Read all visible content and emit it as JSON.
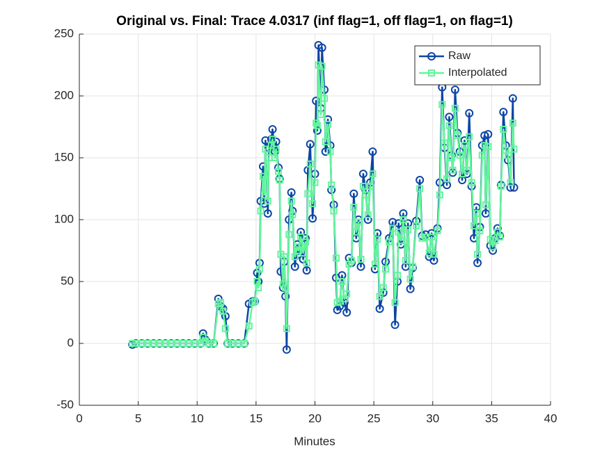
{
  "chart_data": {
    "type": "line",
    "title": "Original vs. Final: Trace 4.0317 (inf flag=1, off flag=1, on flag=1)",
    "x_label": "Minutes",
    "x": [
      4.5,
      4.8,
      5.3,
      5.8,
      6.3,
      6.8,
      7.3,
      7.8,
      8.3,
      8.8,
      9.3,
      9.8,
      10.3,
      10.5,
      10.7,
      11.0,
      11.4,
      11.8,
      12.0,
      12.2,
      12.4,
      12.6,
      13.0,
      13.5,
      14.0,
      14.4,
      14.7,
      14.9,
      15.1,
      15.2,
      15.3,
      15.4,
      15.6,
      15.7,
      15.8,
      16.0,
      16.1,
      16.3,
      16.4,
      16.6,
      16.7,
      16.9,
      17.0,
      17.1,
      17.3,
      17.4,
      17.5,
      17.6,
      17.8,
      18.0,
      18.1,
      18.3,
      18.5,
      18.6,
      18.8,
      19.0,
      19.2,
      19.3,
      19.4,
      19.6,
      19.8,
      20.0,
      20.1,
      20.2,
      20.3,
      20.5,
      20.6,
      20.8,
      20.9,
      21.1,
      21.3,
      21.4,
      21.6,
      21.8,
      21.9,
      22.1,
      22.3,
      22.5,
      22.7,
      22.9,
      23.1,
      23.3,
      23.5,
      23.7,
      23.9,
      24.1,
      24.3,
      24.5,
      24.7,
      24.9,
      25.1,
      25.3,
      25.5,
      25.8,
      26.0,
      26.3,
      26.6,
      26.8,
      27.0,
      27.1,
      27.3,
      27.5,
      27.7,
      27.9,
      28.1,
      28.3,
      28.6,
      28.9,
      29.1,
      29.4,
      29.7,
      29.9,
      30.1,
      30.4,
      30.6,
      30.8,
      31.0,
      31.2,
      31.4,
      31.6,
      31.7,
      31.9,
      32.1,
      32.3,
      32.5,
      32.7,
      32.9,
      33.1,
      33.3,
      33.5,
      33.7,
      33.8,
      34.0,
      34.2,
      34.4,
      34.5,
      34.7,
      34.9,
      35.1,
      35.3,
      35.5,
      35.7,
      35.8,
      36.0,
      36.2,
      36.4,
      36.6,
      36.8,
      36.9
    ],
    "series": [
      {
        "name": "Raw",
        "color": "#0b45a5",
        "marker": "circle",
        "values": [
          -1,
          0,
          0,
          0,
          0,
          0,
          0,
          0,
          0,
          0,
          0,
          0,
          0,
          8,
          3,
          0,
          0,
          36,
          30,
          28,
          22,
          0,
          0,
          0,
          0,
          32,
          34,
          34,
          57,
          50,
          65,
          115,
          143,
          113,
          164,
          105,
          158,
          165,
          173,
          155,
          163,
          142,
          133,
          58,
          45,
          66,
          38,
          -5,
          100,
          122,
          107,
          62,
          80,
          72,
          90,
          68,
          85,
          59,
          140,
          161,
          101,
          137,
          196,
          172,
          241,
          190,
          239,
          205,
          155,
          181,
          160,
          124,
          112,
          53,
          27,
          30,
          55,
          33,
          25,
          69,
          65,
          121,
          85,
          100,
          62,
          137,
          124,
          100,
          130,
          155,
          60,
          89,
          28,
          41,
          66,
          85,
          98,
          15,
          50,
          97,
          80,
          105,
          62,
          97,
          44,
          61,
          99,
          132,
          87,
          88,
          70,
          89,
          67,
          93,
          130,
          207,
          158,
          128,
          183,
          152,
          138,
          205,
          170,
          155,
          132,
          164,
          137,
          186,
          127,
          85,
          110,
          65,
          94,
          160,
          168,
          105,
          169,
          79,
          75,
          85,
          93,
          87,
          128,
          187,
          160,
          148,
          126,
          198,
          126
        ]
      },
      {
        "name": "Interpolated",
        "color": "#62f59c",
        "marker": "square",
        "values": [
          0,
          0,
          0,
          0,
          0,
          0,
          0,
          0,
          0,
          0,
          0,
          0,
          0,
          5,
          2,
          0,
          0,
          32,
          33,
          26,
          12,
          0,
          0,
          0,
          0,
          14,
          33,
          34,
          50,
          45,
          60,
          107,
          135,
          120,
          157,
          115,
          150,
          160,
          165,
          150,
          157,
          139,
          132,
          72,
          48,
          70,
          45,
          12,
          88,
          115,
          104,
          70,
          78,
          75,
          86,
          73,
          82,
          65,
          121,
          145,
          113,
          130,
          178,
          176,
          225,
          185,
          224,
          198,
          163,
          177,
          155,
          128,
          107,
          69,
          33,
          34,
          50,
          36,
          40,
          64,
          67,
          110,
          90,
          98,
          68,
          127,
          120,
          104,
          127,
          137,
          64,
          84,
          38,
          45,
          60,
          82,
          93,
          33,
          55,
          90,
          83,
          100,
          67,
          92,
          52,
          62,
          95,
          125,
          85,
          86,
          73,
          86,
          72,
          91,
          120,
          193,
          162,
          133,
          176,
          150,
          140,
          190,
          168,
          152,
          137,
          160,
          140,
          167,
          130,
          95,
          105,
          72,
          91,
          152,
          160,
          112,
          159,
          84,
          78,
          83,
          90,
          86,
          127,
          173,
          156,
          152,
          130,
          178,
          157
        ]
      }
    ],
    "xlim": [
      0,
      40
    ],
    "xticks": [
      0,
      5,
      10,
      15,
      20,
      25,
      30,
      35,
      40
    ],
    "ylim": [
      -50,
      250
    ],
    "yticks": [
      -50,
      0,
      50,
      100,
      150,
      200,
      250
    ],
    "grid": true,
    "legend": "northeast"
  }
}
